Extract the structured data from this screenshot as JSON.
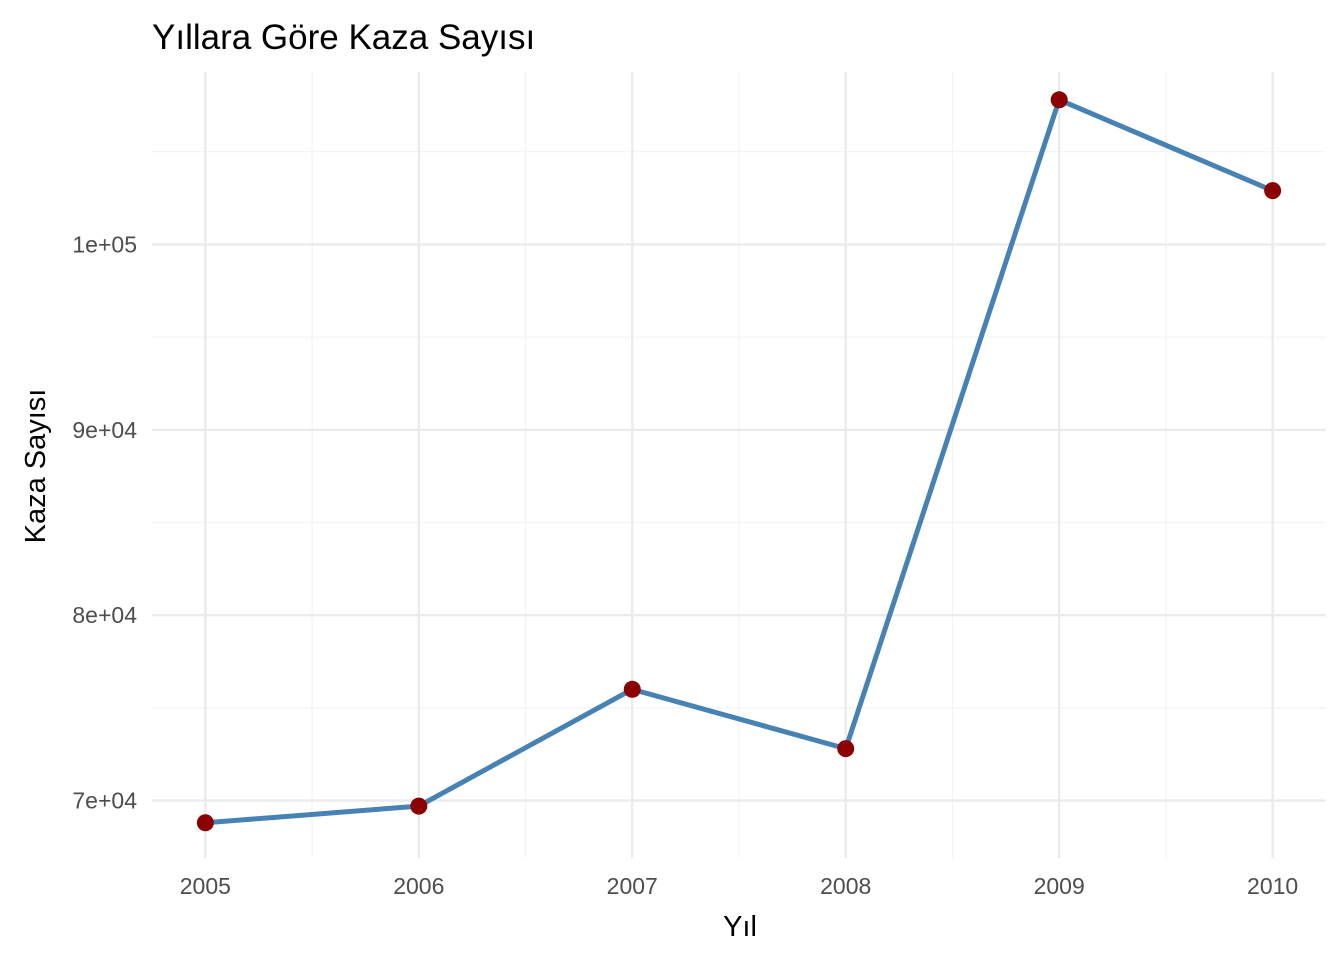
{
  "chart_data": {
    "type": "line",
    "title": "Yıllara Göre Kaza Sayısı",
    "xlabel": "Yıl",
    "ylabel": "Kaza Sayısı",
    "x": [
      2005,
      2006,
      2007,
      2008,
      2009,
      2010
    ],
    "x_tick_labels": [
      "2005",
      "2006",
      "2007",
      "2008",
      "2009",
      "2010"
    ],
    "y_ticks": [
      70000,
      80000,
      90000,
      100000
    ],
    "y_tick_labels": [
      "7e+04",
      "8e+04",
      "9e+04",
      "1e+05"
    ],
    "ylim": [
      66900,
      109300
    ],
    "xlim": [
      2004.75,
      2010.25
    ],
    "series": [
      {
        "values": [
          68800,
          69700,
          76000,
          72800,
          107800,
          102900
        ],
        "line_color": "#4682B4",
        "point_color": "#8B0000"
      }
    ],
    "grid": true,
    "legend": "none"
  }
}
